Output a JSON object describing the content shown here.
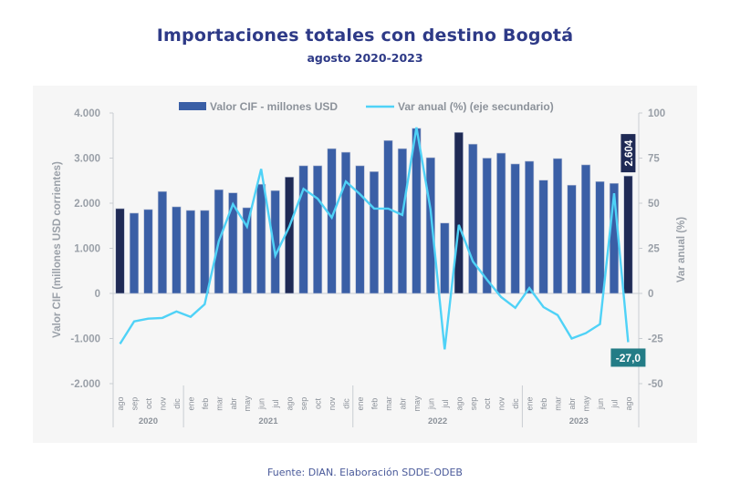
{
  "chart_data": {
    "type": "bar+line",
    "title": "Importaciones totales con destino Bogotá",
    "subtitle": "agosto 2020-2023",
    "source": "Fuente: DIAN. Elaboración SDDE-ODEB",
    "ylabel": "Valor CIF (millones USD corrientes)",
    "y2label": "Var  anual (%)",
    "ylim": [
      -2000,
      4000
    ],
    "y2lim": [
      -50,
      100
    ],
    "yticks": [
      "4.000",
      "3.000",
      "2.000",
      "1.000",
      "0",
      "-1.000",
      "-2.000"
    ],
    "y2ticks": [
      "100",
      "75",
      "50",
      "25",
      "0",
      "-25",
      "-50"
    ],
    "legend": {
      "position": "top",
      "bar_label": "Valor CIF - millones USD",
      "line_label": "Var anual (%) (eje secundario)"
    },
    "categories": [
      "ago",
      "sep",
      "oct",
      "nov",
      "dic",
      "ene",
      "feb",
      "mar",
      "abr",
      "may",
      "jun",
      "jul",
      "ago",
      "sep",
      "oct",
      "nov",
      "dic",
      "ene",
      "feb",
      "mar",
      "abr",
      "may",
      "jun",
      "jul",
      "ago",
      "sep",
      "oct",
      "nov",
      "dic",
      "ene",
      "feb",
      "mar",
      "abr",
      "may",
      "jun",
      "jul",
      "ago"
    ],
    "years": [
      {
        "label": "2020",
        "start": 0,
        "end": 4
      },
      {
        "label": "2021",
        "start": 5,
        "end": 16
      },
      {
        "label": "2022",
        "start": 17,
        "end": 28
      },
      {
        "label": "2023",
        "start": 29,
        "end": 36
      }
    ],
    "highlight_indices": [
      0,
      12,
      24,
      36
    ],
    "series": [
      {
        "name": "Valor CIF - millones USD",
        "type": "bar",
        "axis": "primary",
        "values": [
          1880,
          1780,
          1860,
          2260,
          1920,
          1840,
          1840,
          2300,
          2230,
          1900,
          2420,
          2280,
          2580,
          2830,
          2830,
          3210,
          3130,
          2830,
          2700,
          3390,
          3210,
          3660,
          3010,
          1560,
          3570,
          3310,
          3000,
          3110,
          2870,
          2930,
          2510,
          2990,
          2400,
          2850,
          2480,
          2440,
          2604
        ]
      },
      {
        "name": "Var anual (%) (eje secundario)",
        "type": "line",
        "axis": "secondary",
        "values": [
          -28,
          -15.5,
          -14,
          -13.6,
          -10,
          -13,
          -6,
          29,
          49.5,
          37,
          69,
          21,
          37,
          58,
          52.5,
          42,
          62,
          55,
          47,
          47,
          43.5,
          92,
          46.5,
          -31,
          38,
          17.7,
          7.6,
          -2,
          -8,
          3,
          -7.6,
          -12,
          -25,
          -22,
          -17,
          55.5,
          -27.0
        ]
      }
    ],
    "annotations": {
      "last_bar_label": "2.604",
      "last_line_label": "-27,0"
    },
    "colors": {
      "bar": "#3a5fa6",
      "bar_highlight": "#1f2a55",
      "line": "#4fd2f7",
      "line_label_bg": "#237c86",
      "title": "#2e3a87",
      "axis_text": "#9aa0a8"
    }
  }
}
